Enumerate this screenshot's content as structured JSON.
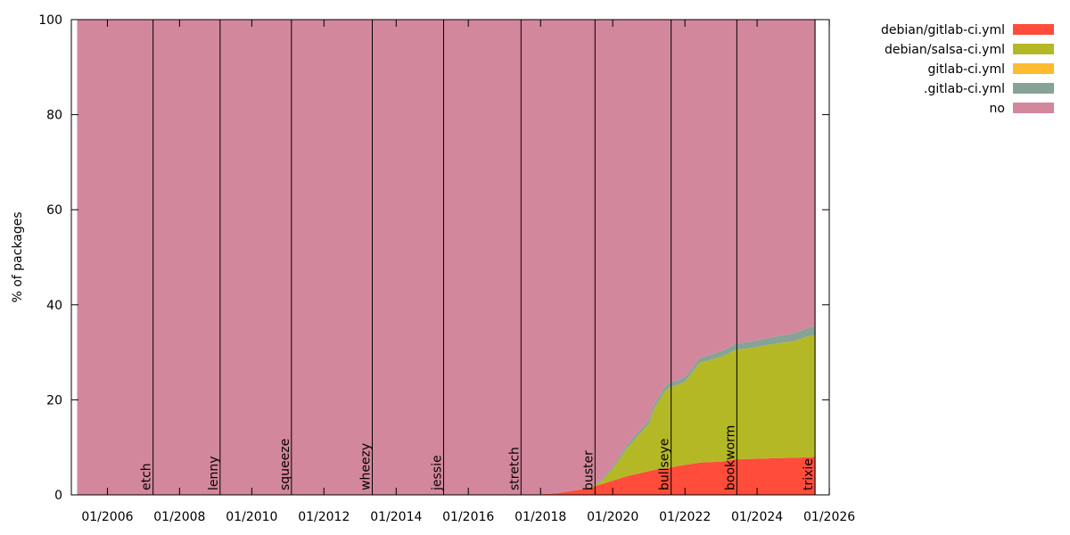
{
  "chart_data": {
    "type": "area",
    "stacked": true,
    "ylabel": "% of packages",
    "xlabel": "",
    "ylim": [
      0,
      100
    ],
    "xlim": [
      "2005-01-01",
      "2025-12-31"
    ],
    "y_ticks": [
      0,
      20,
      40,
      60,
      80,
      100
    ],
    "x_ticks": [
      {
        "date": "2006-01-01",
        "label": "01/2006"
      },
      {
        "date": "2008-01-01",
        "label": "01/2008"
      },
      {
        "date": "2010-01-01",
        "label": "01/2010"
      },
      {
        "date": "2012-01-01",
        "label": "01/2012"
      },
      {
        "date": "2014-01-01",
        "label": "01/2014"
      },
      {
        "date": "2016-01-01",
        "label": "01/2016"
      },
      {
        "date": "2018-01-01",
        "label": "01/2018"
      },
      {
        "date": "2020-01-01",
        "label": "01/2020"
      },
      {
        "date": "2022-01-01",
        "label": "01/2022"
      },
      {
        "date": "2024-01-01",
        "label": "01/2024"
      },
      {
        "date": "2026-01-01",
        "label": "01/2026"
      }
    ],
    "grid": false,
    "legend_position": "top-right",
    "x": [
      "2005-03-01",
      "2017-09-01",
      "2018-06-01",
      "2019-01-01",
      "2019-06-01",
      "2019-09-01",
      "2020-01-01",
      "2020-06-01",
      "2021-01-01",
      "2021-03-01",
      "2021-06-01",
      "2021-08-01",
      "2021-10-01",
      "2022-01-01",
      "2022-06-01",
      "2023-01-01",
      "2023-06-01",
      "2024-01-01",
      "2024-06-01",
      "2025-01-01",
      "2025-06-01",
      "2025-08-15"
    ],
    "series": [
      {
        "name": "debian/gitlab-ci.yml",
        "color": "#ff4c3b",
        "values": [
          0,
          0,
          0.3,
          1.0,
          1.6,
          2.2,
          3.0,
          4.0,
          5.0,
          5.3,
          5.5,
          5.7,
          6.0,
          6.3,
          6.8,
          7.0,
          7.5,
          7.6,
          7.7,
          7.8,
          7.9,
          8.0
        ]
      },
      {
        "name": "debian/salsa-ci.yml",
        "color": "#b5b825",
        "values": [
          0,
          0,
          0,
          0,
          0.1,
          0.5,
          2.5,
          6.0,
          10.0,
          13.0,
          16.0,
          17.0,
          17.0,
          17.5,
          21.0,
          22.0,
          23.0,
          23.5,
          24.0,
          24.5,
          25.5,
          25.5
        ]
      },
      {
        "name": "gitlab-ci.yml",
        "color": "#fdbb30",
        "values": [
          0,
          0,
          0,
          0,
          0,
          0,
          0,
          0,
          0,
          0,
          0,
          0,
          0,
          0,
          0,
          0,
          0,
          0,
          0,
          0,
          0,
          0
        ]
      },
      {
        "name": ".gitlab-ci.yml",
        "color": "#86a395",
        "values": [
          0,
          0,
          0,
          0,
          0.1,
          0.3,
          0.5,
          0.7,
          0.8,
          1.0,
          1.0,
          1.0,
          1.0,
          1.0,
          1.0,
          1.2,
          1.3,
          1.4,
          1.5,
          1.6,
          1.8,
          2.0
        ]
      },
      {
        "name": "no",
        "color": "#d3879c",
        "values": [
          100,
          100,
          99.7,
          99.0,
          98.2,
          97.0,
          94.0,
          89.3,
          84.2,
          80.7,
          77.5,
          76.3,
          76.0,
          75.2,
          71.2,
          69.8,
          68.2,
          67.5,
          66.8,
          66.1,
          64.8,
          64.5
        ]
      }
    ],
    "releases": [
      {
        "name": "etch",
        "date": "2007-04-08"
      },
      {
        "name": "lenny",
        "date": "2009-02-14"
      },
      {
        "name": "squeeze",
        "date": "2011-02-06"
      },
      {
        "name": "wheezy",
        "date": "2013-05-04"
      },
      {
        "name": "jessie",
        "date": "2015-04-26"
      },
      {
        "name": "stretch",
        "date": "2017-06-17"
      },
      {
        "name": "buster",
        "date": "2019-07-06"
      },
      {
        "name": "bullseye",
        "date": "2021-08-14"
      },
      {
        "name": "bookworm",
        "date": "2023-06-10"
      },
      {
        "name": "trixie",
        "date": "2025-08-09"
      }
    ]
  }
}
